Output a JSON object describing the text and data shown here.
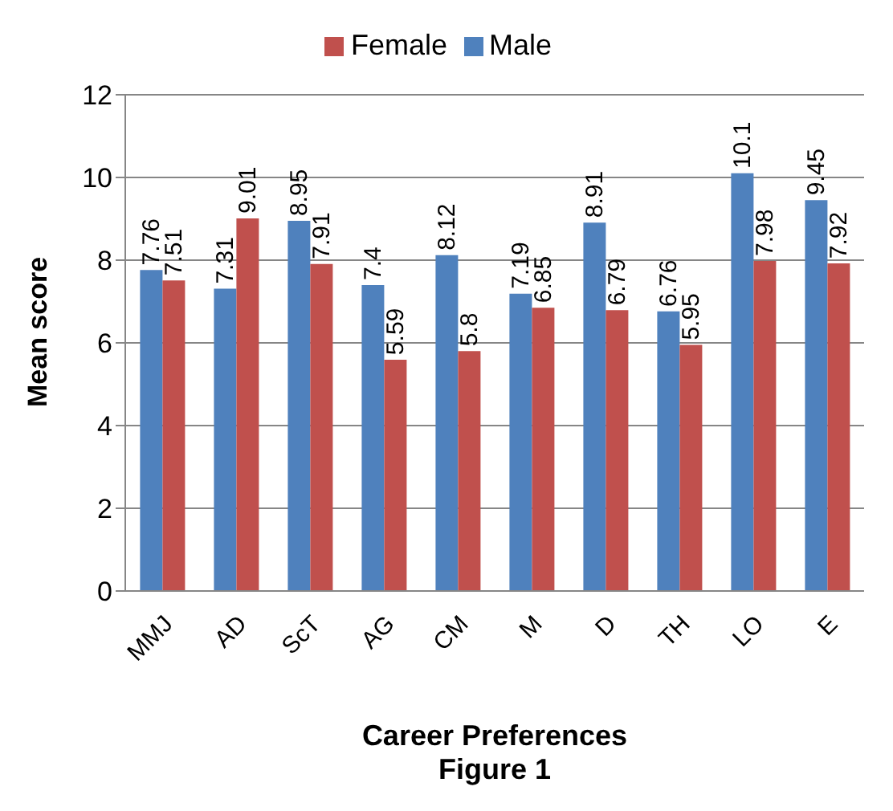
{
  "chart_data": {
    "type": "bar",
    "xlabel": "Career Preferences",
    "ylabel": "Mean score",
    "annotations": [
      "Figure 1"
    ],
    "categories": [
      "MMJ",
      "AD",
      "ScT",
      "AG",
      "CM",
      "M",
      "D",
      "TH",
      "LO",
      "E"
    ],
    "series": [
      {
        "name": "Male",
        "color": "#4f81bd",
        "values": [
          7.76,
          7.31,
          8.95,
          7.4,
          8.12,
          7.19,
          8.91,
          6.76,
          10.1,
          9.45
        ]
      },
      {
        "name": "Female",
        "color": "#c0504d",
        "values": [
          7.51,
          9.01,
          7.91,
          5.59,
          5.8,
          6.85,
          6.79,
          5.95,
          7.98,
          7.92
        ]
      }
    ],
    "ylim": [
      0,
      12
    ],
    "yticks": [
      0,
      2,
      4,
      6,
      8,
      10,
      12
    ],
    "grid": "y",
    "legend": "top",
    "data_labels": true
  }
}
